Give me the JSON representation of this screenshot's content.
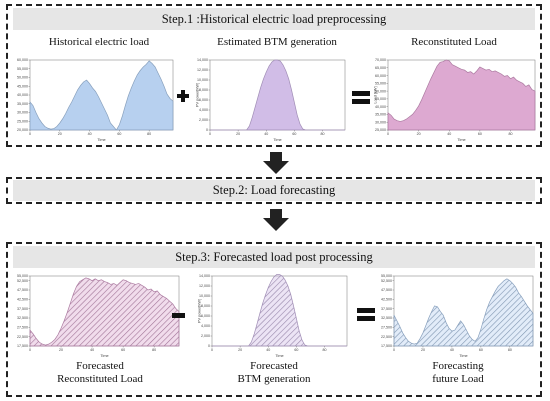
{
  "step1": {
    "title": "Step.1 :Historical electric load preprocessing",
    "labels": [
      "Historical electric load",
      "Estimated BTM generation",
      "Reconstituted Load"
    ]
  },
  "step2": {
    "title": "Step.2: Load forecasting"
  },
  "step3": {
    "title": "Step.3: Forecasted load post processing",
    "labels": [
      [
        "Forecasted",
        "Reconstituted Load"
      ],
      [
        "Forecasted",
        "BTM generation"
      ],
      [
        "Forecasting",
        "future Load"
      ]
    ]
  },
  "axis": {
    "xlabel": "Time",
    "btm_ylabel": "PV power[kW]",
    "recon_ylabel": "Load [kW]"
  },
  "colors": {
    "blue": "#aac8ec",
    "purple": "#c9b2e3",
    "magenta": "#d79ac9",
    "arrow": "#222222"
  },
  "operators": [
    "plus",
    "equals",
    "minus",
    "equals"
  ],
  "chart_data": [
    {
      "id": "historical-load",
      "type": "area",
      "xlabel": "Time",
      "x": [
        0,
        2,
        4,
        6,
        8,
        10,
        12,
        14,
        16,
        18,
        20,
        22,
        24,
        26,
        28,
        30,
        32,
        34,
        36,
        38,
        40,
        42,
        44,
        46,
        48,
        50,
        52,
        54,
        56,
        58,
        60,
        62,
        64,
        66,
        68,
        70,
        72,
        74,
        76,
        78,
        80,
        82,
        84,
        86,
        88,
        90,
        92,
        94,
        96
      ],
      "y": [
        36000,
        34000,
        30000,
        26500,
        24000,
        22000,
        21000,
        20500,
        20800,
        22000,
        24000,
        26500,
        29500,
        33000,
        36000,
        39500,
        43000,
        45500,
        47500,
        48500,
        46500,
        44000,
        42000,
        39000,
        35500,
        32000,
        28500,
        24000,
        22000,
        20000,
        23000,
        28000,
        34000,
        39500,
        44000,
        48000,
        51500,
        54000,
        56000,
        57500,
        59500,
        58000,
        56000,
        52500,
        49000,
        45000,
        40500,
        38000,
        36500
      ],
      "ylim": [
        20000,
        60000
      ],
      "yticks": [
        20000,
        25000,
        30000,
        35000,
        40000,
        45000,
        50000,
        55000,
        60000
      ],
      "xticks": [
        0,
        20,
        40,
        60,
        80
      ]
    },
    {
      "id": "estimated-btm",
      "type": "area",
      "xlabel": "Time",
      "ylabel": "PV power[kW]",
      "x": [
        0,
        26,
        28,
        30,
        32,
        34,
        36,
        38,
        40,
        42,
        44,
        46,
        48,
        50,
        52,
        54,
        56,
        58,
        60,
        62,
        64,
        66,
        68,
        96
      ],
      "y": [
        0,
        0,
        800,
        2500,
        4500,
        6500,
        8500,
        10200,
        11600,
        12800,
        13600,
        14000,
        14000,
        13800,
        13000,
        11800,
        10200,
        8000,
        5500,
        3000,
        1200,
        200,
        0,
        0
      ],
      "ylim": [
        0,
        14000
      ],
      "yticks": [
        0,
        2000,
        4000,
        6000,
        8000,
        10000,
        12000,
        14000
      ],
      "xticks": [
        0,
        20,
        40,
        60,
        80
      ]
    },
    {
      "id": "reconstituted-load",
      "type": "area",
      "xlabel": "Time",
      "ylabel": "Load [kW]",
      "x": [
        0,
        2,
        4,
        6,
        8,
        10,
        12,
        14,
        16,
        18,
        20,
        22,
        24,
        26,
        28,
        30,
        32,
        34,
        36,
        38,
        40,
        42,
        44,
        46,
        48,
        50,
        52,
        54,
        56,
        58,
        60,
        62,
        64,
        66,
        68,
        70,
        72,
        74,
        76,
        78,
        80,
        82,
        84,
        86,
        88,
        90,
        92,
        94,
        96
      ],
      "y": [
        36000,
        34500,
        32000,
        31000,
        30500,
        31000,
        32000,
        33500,
        35000,
        37500,
        40500,
        44500,
        49000,
        53500,
        58000,
        62000,
        66000,
        68500,
        69000,
        70000,
        69500,
        67000,
        66000,
        65000,
        64000,
        63500,
        62000,
        62500,
        61000,
        63000,
        65500,
        64500,
        63500,
        64000,
        62500,
        63000,
        62000,
        61000,
        59500,
        60000,
        58000,
        59000,
        57000,
        56000,
        55000,
        53000,
        54000,
        51000,
        50000
      ],
      "ylim": [
        25000,
        70000
      ],
      "yticks": [
        25000,
        30000,
        35000,
        40000,
        45000,
        50000,
        55000,
        60000,
        65000,
        70000
      ],
      "xticks": [
        0,
        20,
        40,
        60,
        80
      ]
    },
    {
      "id": "forecasted-reconstituted-load",
      "type": "area",
      "xlabel": "Time",
      "x": [
        0,
        2,
        4,
        6,
        8,
        10,
        12,
        14,
        16,
        18,
        20,
        22,
        24,
        26,
        28,
        30,
        32,
        34,
        36,
        38,
        40,
        42,
        44,
        46,
        48,
        50,
        52,
        54,
        56,
        58,
        60,
        62,
        64,
        66,
        68,
        70,
        72,
        74,
        76,
        78,
        80,
        82,
        84,
        86,
        88,
        90,
        92,
        94,
        96
      ],
      "y": [
        26000,
        24000,
        21500,
        19500,
        18500,
        18000,
        18500,
        19500,
        21000,
        23500,
        27000,
        31000,
        35500,
        40500,
        45500,
        49500,
        52000,
        53000,
        54000,
        53500,
        52500,
        53500,
        52500,
        53000,
        52000,
        51500,
        50500,
        51000,
        50000,
        51500,
        53000,
        52500,
        51500,
        51000,
        50500,
        51000,
        50000,
        49000,
        47500,
        48000,
        46500,
        47000,
        45000,
        44000,
        43000,
        41500,
        40000,
        37500,
        36000
      ],
      "ylim": [
        17500,
        55000
      ],
      "yticks": [
        17500,
        22500,
        27500,
        32500,
        37500,
        42500,
        47500,
        52500,
        55000
      ],
      "xticks": [
        0,
        20,
        40,
        60,
        80
      ]
    },
    {
      "id": "forecasted-btm",
      "type": "area",
      "xlabel": "Time",
      "ylabel": "PV power[kW]",
      "x": [
        0,
        26,
        28,
        30,
        32,
        34,
        36,
        38,
        40,
        42,
        44,
        46,
        48,
        50,
        52,
        54,
        56,
        58,
        60,
        62,
        64,
        66,
        68,
        96
      ],
      "y": [
        0,
        0,
        800,
        2400,
        4400,
        6500,
        8500,
        10200,
        11700,
        12900,
        13800,
        14300,
        14300,
        14000,
        13200,
        12000,
        10300,
        8000,
        5500,
        3000,
        1200,
        200,
        0,
        0
      ],
      "ylim": [
        0,
        14000
      ],
      "yticks": [
        0,
        2000,
        4000,
        6000,
        8000,
        10000,
        12000,
        14000
      ],
      "xticks": [
        0,
        20,
        40,
        60,
        80
      ]
    },
    {
      "id": "forecasting-future-load",
      "type": "area",
      "xlabel": "Time",
      "x": [
        0,
        2,
        4,
        6,
        8,
        10,
        12,
        14,
        16,
        18,
        20,
        22,
        24,
        26,
        28,
        30,
        32,
        34,
        36,
        38,
        40,
        42,
        44,
        46,
        48,
        50,
        52,
        54,
        56,
        58,
        60,
        62,
        64,
        66,
        68,
        70,
        72,
        74,
        76,
        78,
        80,
        82,
        84,
        86,
        88,
        90,
        92,
        94,
        96
      ],
      "y": [
        34000,
        31000,
        28000,
        24500,
        22000,
        20000,
        19000,
        18500,
        19000,
        21500,
        24500,
        28500,
        32500,
        36000,
        39000,
        38500,
        36000,
        34000,
        30000,
        27000,
        25500,
        26000,
        28500,
        31000,
        29000,
        26000,
        23000,
        21000,
        20000,
        22000,
        26500,
        32000,
        37000,
        41000,
        44000,
        47000,
        49500,
        51000,
        52500,
        53500,
        52500,
        51000,
        49000,
        46000,
        44000,
        41500,
        39000,
        37000,
        35000
      ],
      "ylim": [
        17500,
        55000
      ],
      "yticks": [
        17500,
        22500,
        27500,
        32500,
        37500,
        42500,
        47500,
        52500,
        55000
      ],
      "xticks": [
        0,
        20,
        40,
        60,
        80
      ]
    }
  ]
}
